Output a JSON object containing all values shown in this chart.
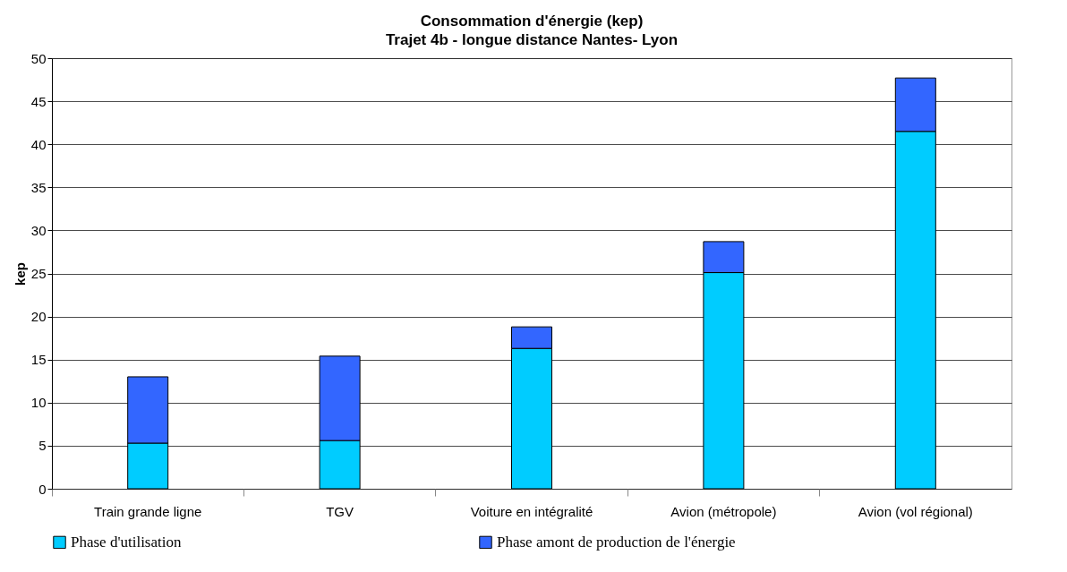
{
  "chart_data": {
    "type": "bar",
    "title": "Consommation d'énergie (kep)",
    "subtitle": "Trajet 4b - longue distance Nantes- Lyon",
    "ylabel": "kep",
    "categories": [
      "Train grande ligne",
      "TGV",
      "Voiture en intégralité",
      "Avion (métropole)",
      "Avion (vol régional)"
    ],
    "stacked": true,
    "series": [
      {
        "name": "Phase d'utilisation",
        "color": "#00ccff",
        "values": [
          5.3,
          5.6,
          16.3,
          25.1,
          41.5
        ]
      },
      {
        "name": "Phase amont de production de l'énergie",
        "color": "#3366ff",
        "values": [
          7.7,
          9.8,
          2.5,
          3.6,
          6.2
        ]
      }
    ],
    "ylim": [
      0,
      50
    ],
    "yticks": [
      0,
      5,
      10,
      15,
      20,
      25,
      30,
      35,
      40,
      45,
      50
    ],
    "grid": "y",
    "legend": "bottom"
  }
}
